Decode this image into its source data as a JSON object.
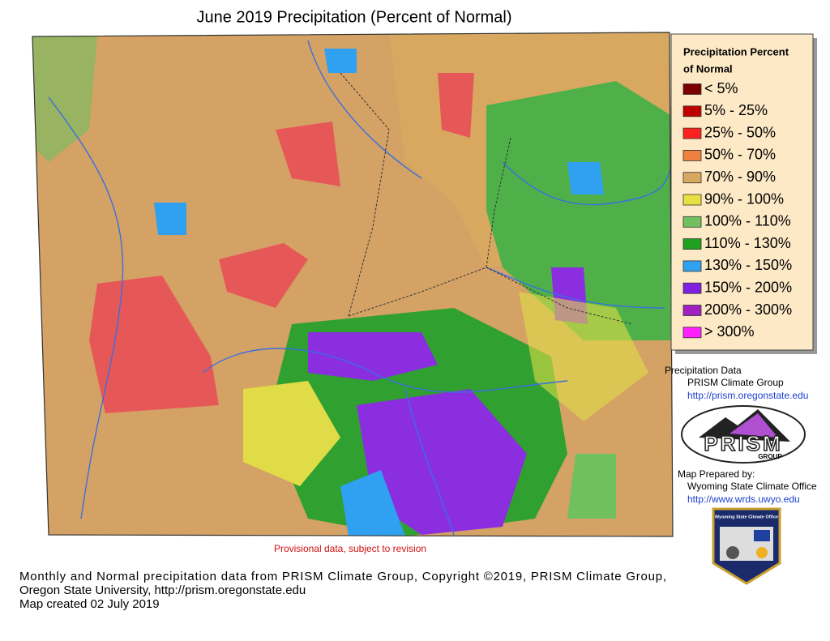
{
  "title": "June 2019 Precipitation (Percent of Normal)",
  "legend": {
    "title_lines": [
      "Precipitation Percent",
      "of Normal"
    ],
    "items": [
      {
        "label": "< 5%",
        "color": "#7a0000"
      },
      {
        "label": "5% - 25%",
        "color": "#c00000"
      },
      {
        "label": "25% - 50%",
        "color": "#ff2020"
      },
      {
        "label": "50% - 70%",
        "color": "#f08040"
      },
      {
        "label": "70% - 90%",
        "color": "#d8a860"
      },
      {
        "label": "90% - 100%",
        "color": "#e8e040"
      },
      {
        "label": "100% - 110%",
        "color": "#70c060"
      },
      {
        "label": "110% - 130%",
        "color": "#20a020"
      },
      {
        "label": "130% - 150%",
        "color": "#30a0f0"
      },
      {
        "label": "150% - 200%",
        "color": "#8020e0"
      },
      {
        "label": "200% - 300%",
        "color": "#a020c0"
      },
      {
        "label": "> 300%",
        "color": "#ff20ff"
      }
    ]
  },
  "credits": {
    "data_heading": "Precipitation Data",
    "data_source": "PRISM Climate Group",
    "data_url": "http://prism.oregonstate.edu",
    "logo_text": "PRISM",
    "logo_subtext": "GROUP",
    "prepared_heading": "Map Prepared by:",
    "prepared_by": "Wyoming State Climate Office",
    "prepared_url": "http://www.wrds.uwyo.edu",
    "badge_text": "Wyoming State Climate Office"
  },
  "provisional_note": "Provisional data, subject to revision",
  "footer": [
    "Monthly and Normal precipitation data from PRISM Climate Group, Copyright ©2019, PRISM Climate Group,",
    "Oregon State University, http://prism.oregonstate.edu",
    "Map created 02 July 2019"
  ]
}
